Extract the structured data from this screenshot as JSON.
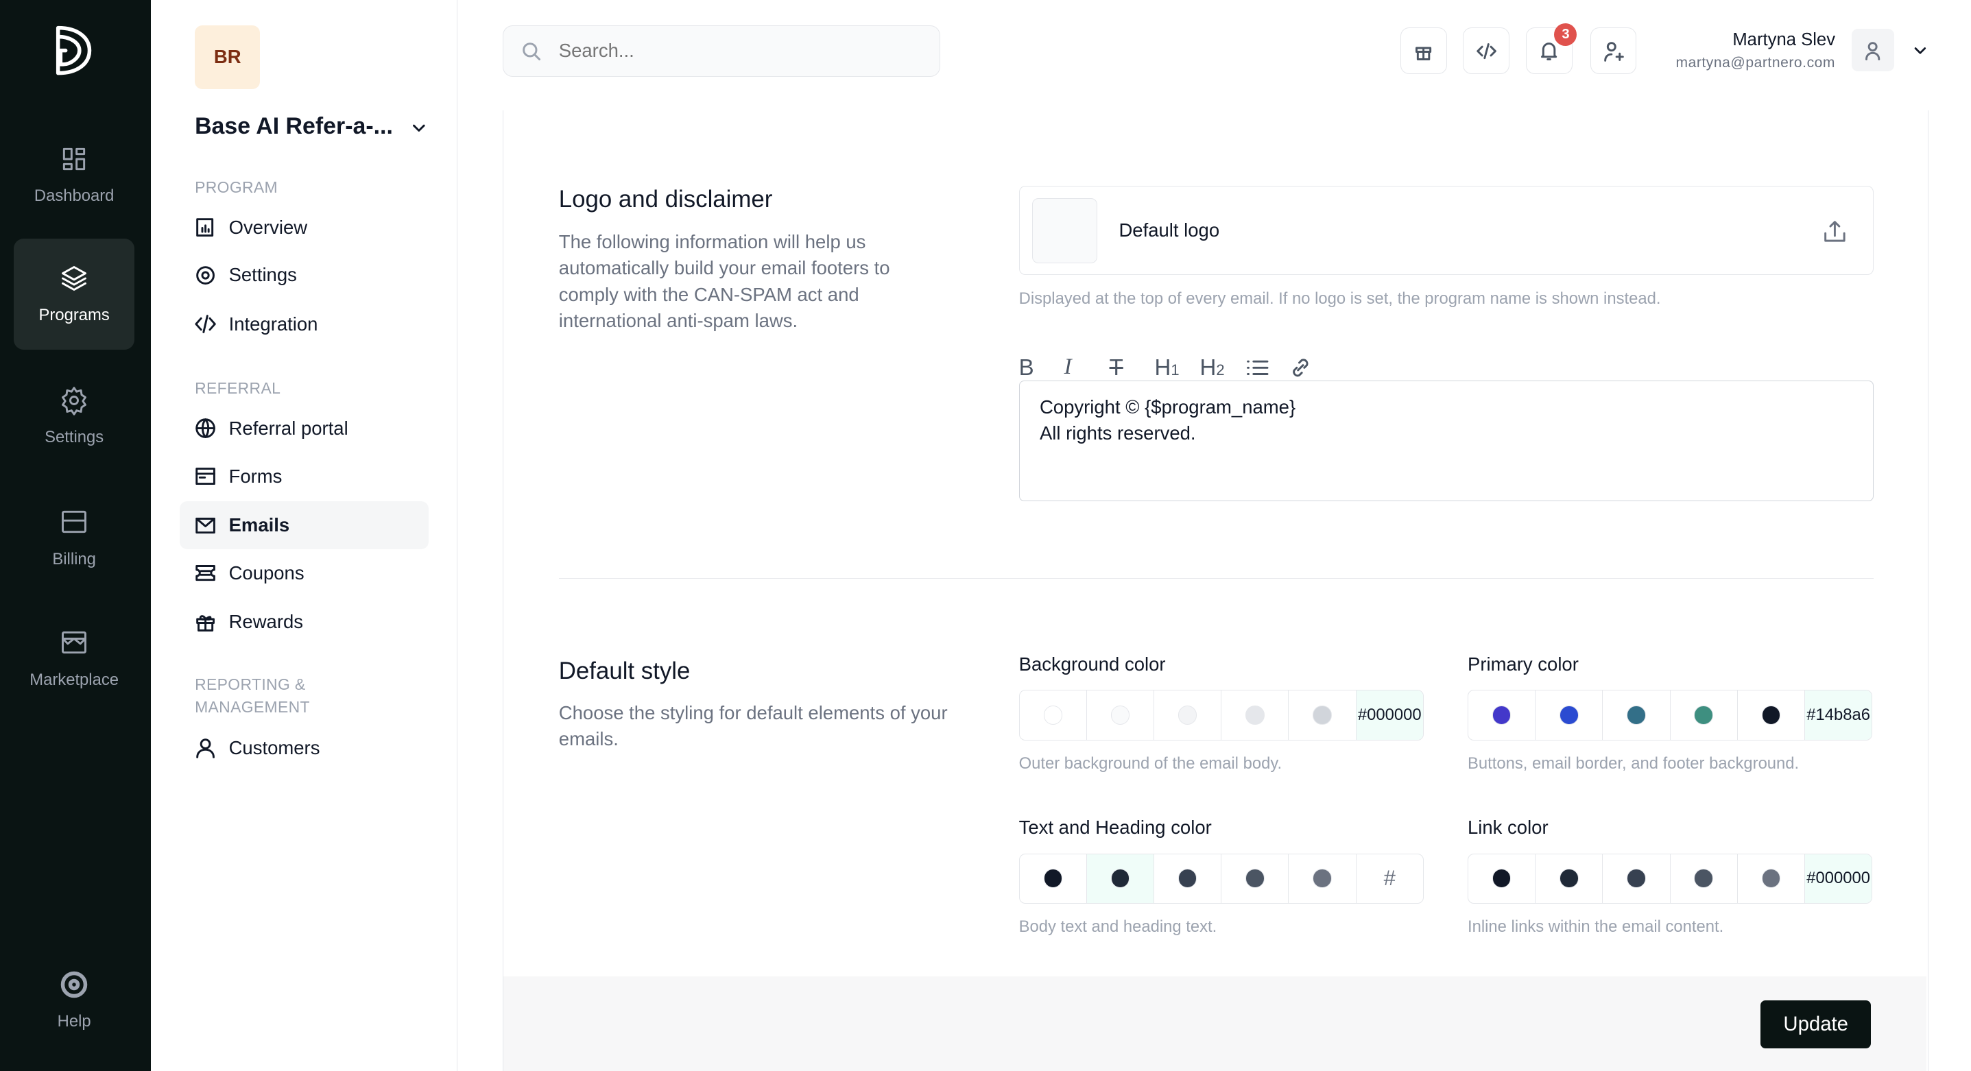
{
  "rail": {
    "items": [
      {
        "label": "Dashboard",
        "icon": "dashboard-icon"
      },
      {
        "label": "Programs",
        "icon": "layers-icon",
        "active": true
      },
      {
        "label": "Settings",
        "icon": "gear-icon"
      },
      {
        "label": "Billing",
        "icon": "billing-icon"
      },
      {
        "label": "Marketplace",
        "icon": "store-icon"
      }
    ],
    "help": "Help"
  },
  "program": {
    "initials": "BR",
    "name": "Base AI Refer-a-..."
  },
  "nav": {
    "sections": [
      "PROGRAM",
      "REFERRAL",
      "REPORTING &",
      "MANAGEMENT"
    ],
    "items": [
      {
        "label": "Overview"
      },
      {
        "label": "Settings"
      },
      {
        "label": "Integration"
      },
      {
        "label": "Referral portal"
      },
      {
        "label": "Forms"
      },
      {
        "label": "Emails",
        "active": true
      },
      {
        "label": "Coupons"
      },
      {
        "label": "Rewards"
      },
      {
        "label": "Customers"
      }
    ]
  },
  "header": {
    "search_placeholder": "Search...",
    "notifications": "3",
    "user_name": "Martyna Slev",
    "user_email": "martyna@partnero.com"
  },
  "logo_section": {
    "title": "Logo and disclaimer",
    "description": "The following information will help us automatically build your email footers to comply with the CAN-SPAM act and international anti-spam laws.",
    "logo_label": "Default logo",
    "logo_hint": "Displayed at the top of every email. If no logo is set, the program name is shown instead.",
    "toolbar": [
      "B",
      "I",
      "S",
      "H1",
      "H2",
      "list",
      "link"
    ],
    "editor_lines": [
      "Copyright © {$program_name}",
      "All rights reserved."
    ]
  },
  "style_section": {
    "title": "Default style",
    "description": "Choose the styling for default elements of your emails.",
    "groups": [
      {
        "label": "Background color",
        "hint": "Outer background of the email body.",
        "swatches": [
          "#ffffff",
          "#f9fafb",
          "#f3f4f6",
          "#e5e7eb",
          "#d1d5db"
        ],
        "value": "#000000"
      },
      {
        "label": "Primary color",
        "hint": "Buttons, email border, and footer background.",
        "swatches": [
          "#4338ca",
          "#2b4bd1",
          "#336f88",
          "#3e8f80",
          "#111827"
        ],
        "value": "#14b8a6"
      },
      {
        "label": "Text and Heading color",
        "hint": "Body text and heading text.",
        "swatches": [
          "#111827",
          "#1f2937",
          "#374151",
          "#4b5563",
          "#6b7280"
        ],
        "value": "#",
        "selected": 1
      },
      {
        "label": "Link color",
        "hint": "Inline links within the email content.",
        "swatches": [
          "#111827",
          "#1f2937",
          "#374151",
          "#4b5563",
          "#6b7280"
        ],
        "value": "#000000"
      }
    ]
  },
  "footer": {
    "update": "Update"
  }
}
